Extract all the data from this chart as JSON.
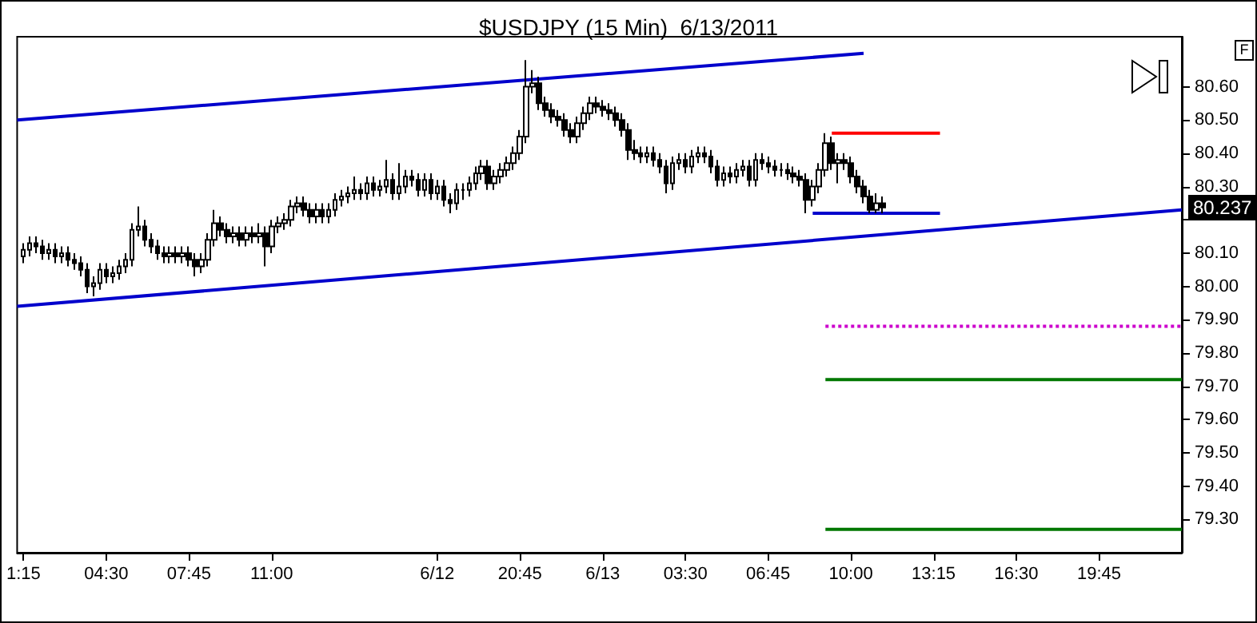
{
  "chart_data": {
    "type": "candlestick",
    "title": "$USDJPY (15 Min)  6/13/2011",
    "marker": "none",
    "categories": [
      null,
      "1:15",
      null,
      null,
      null,
      null,
      null,
      null,
      null,
      null,
      null,
      null,
      null,
      null,
      "04:30",
      null,
      null,
      null,
      null,
      null,
      null,
      null,
      null,
      null,
      null,
      null,
      null,
      "07:45",
      null,
      null,
      null,
      null,
      null,
      null,
      null,
      null,
      null,
      null,
      null,
      null,
      "11:00",
      null,
      null,
      null,
      null,
      null,
      null,
      null,
      null,
      null,
      null,
      null,
      null,
      null,
      null,
      null,
      null,
      null,
      null,
      null,
      null,
      null,
      null,
      null,
      null,
      null,
      "6/12",
      null,
      null,
      null,
      null,
      null,
      null,
      null,
      null,
      null,
      null,
      null,
      null,
      "20:45",
      null,
      null,
      null,
      null,
      null,
      null,
      null,
      null,
      null,
      null,
      null,
      null,
      "6/13",
      null,
      null,
      null,
      null,
      null,
      null,
      null,
      null,
      null,
      null,
      null,
      null,
      "03:30",
      null,
      null,
      null,
      null,
      null,
      null,
      null,
      null,
      null,
      null,
      null,
      null,
      "06:45",
      null,
      null,
      null,
      null,
      null,
      null,
      null,
      null,
      null,
      null,
      null,
      null,
      "10:00",
      null,
      null,
      null,
      null,
      null,
      null,
      null,
      null,
      null,
      null,
      null,
      null,
      "13:15",
      null,
      null,
      null,
      null,
      null,
      null,
      null,
      null,
      null,
      null,
      null,
      null,
      "16:30",
      null,
      null,
      null,
      null,
      null,
      null,
      null,
      null,
      null,
      null,
      null,
      null,
      "19:45",
      null,
      null,
      null,
      null,
      null,
      null,
      null,
      null,
      null,
      null,
      null,
      null,
      null
    ],
    "ylim": [
      79.2,
      80.75
    ],
    "yticks": [
      {
        "value": 79.3,
        "label": "79.30"
      },
      {
        "value": 79.4,
        "label": "79.40"
      },
      {
        "value": 79.5,
        "label": "79.50"
      },
      {
        "value": 79.6,
        "label": "79.60"
      },
      {
        "value": 79.7,
        "label": "79.70"
      },
      {
        "value": 79.8,
        "label": "79.80"
      },
      {
        "value": 79.9,
        "label": "79.90"
      },
      {
        "value": 80.0,
        "label": "80.00"
      },
      {
        "value": 80.1,
        "label": "80.10"
      },
      {
        "value": 80.2,
        "label": null
      },
      {
        "value": 80.3,
        "label": "80.30"
      },
      {
        "value": 80.4,
        "label": "80.40"
      },
      {
        "value": 80.5,
        "label": "80.50"
      },
      {
        "value": 80.6,
        "label": "80.60"
      }
    ],
    "annotations": [
      "80.237",
      "F"
    ],
    "series": [
      {
        "color": "#000000",
        "ohlc": [
          null,
          [
            80.09,
            80.13,
            80.07,
            80.11
          ],
          [
            80.11,
            80.15,
            80.09,
            80.13
          ],
          [
            80.13,
            80.15,
            80.1,
            80.12
          ],
          [
            80.12,
            80.14,
            80.08,
            80.1
          ],
          [
            80.1,
            80.13,
            80.08,
            80.11
          ],
          [
            80.11,
            80.13,
            80.07,
            80.09
          ],
          [
            80.09,
            80.12,
            80.07,
            80.1
          ],
          [
            80.1,
            80.12,
            80.06,
            80.08
          ],
          [
            80.08,
            80.1,
            80.05,
            80.07
          ],
          [
            80.07,
            80.09,
            80.03,
            80.05
          ],
          [
            80.05,
            80.07,
            79.98,
            80.0
          ],
          [
            80.0,
            80.03,
            79.97,
            80.01
          ],
          [
            80.01,
            80.07,
            79.99,
            80.05
          ],
          [
            80.05,
            80.07,
            80.01,
            80.03
          ],
          [
            80.03,
            80.06,
            80.01,
            80.04
          ],
          [
            80.04,
            80.08,
            80.02,
            80.06
          ],
          [
            80.06,
            80.1,
            80.04,
            80.08
          ],
          [
            80.08,
            80.19,
            80.06,
            80.17
          ],
          [
            80.17,
            80.24,
            80.15,
            80.18
          ],
          [
            80.18,
            80.2,
            80.12,
            80.14
          ],
          [
            80.14,
            80.16,
            80.1,
            80.12
          ],
          [
            80.12,
            80.14,
            80.08,
            80.1
          ],
          [
            80.1,
            80.12,
            80.07,
            80.09
          ],
          [
            80.09,
            80.12,
            80.07,
            80.1
          ],
          [
            80.1,
            80.12,
            80.07,
            80.09
          ],
          [
            80.09,
            80.12,
            80.07,
            80.1
          ],
          [
            80.1,
            80.12,
            80.06,
            80.08
          ],
          [
            80.08,
            80.1,
            80.03,
            80.06
          ],
          [
            80.06,
            80.1,
            80.04,
            80.08
          ],
          [
            80.08,
            80.16,
            80.06,
            80.14
          ],
          [
            80.14,
            80.23,
            80.12,
            80.19
          ],
          [
            80.19,
            80.21,
            80.15,
            80.17
          ],
          [
            80.17,
            80.19,
            80.13,
            80.15
          ],
          [
            80.15,
            80.18,
            80.13,
            80.16
          ],
          [
            80.16,
            80.18,
            80.12,
            80.14
          ],
          [
            80.14,
            80.18,
            80.12,
            80.16
          ],
          [
            80.16,
            80.18,
            80.13,
            80.15
          ],
          [
            80.15,
            80.19,
            80.13,
            80.16
          ],
          [
            80.16,
            80.18,
            80.06,
            80.12
          ],
          [
            80.12,
            80.2,
            80.1,
            80.18
          ],
          [
            80.18,
            80.21,
            80.16,
            80.19
          ],
          [
            80.19,
            80.22,
            80.17,
            80.2
          ],
          [
            80.2,
            80.26,
            80.18,
            80.24
          ],
          [
            80.24,
            80.27,
            80.22,
            80.25
          ],
          [
            80.25,
            80.27,
            80.21,
            80.23
          ],
          [
            80.23,
            80.25,
            80.19,
            80.21
          ],
          [
            80.21,
            80.25,
            80.19,
            80.23
          ],
          [
            80.23,
            80.25,
            80.19,
            80.21
          ],
          [
            80.21,
            80.25,
            80.19,
            80.23
          ],
          [
            80.23,
            80.28,
            80.21,
            80.26
          ],
          [
            80.26,
            80.29,
            80.24,
            80.27
          ],
          [
            80.27,
            80.3,
            80.25,
            80.28
          ],
          [
            80.28,
            80.33,
            80.26,
            80.29
          ],
          [
            80.29,
            80.31,
            80.26,
            80.28
          ],
          [
            80.28,
            80.33,
            80.26,
            80.31
          ],
          [
            80.31,
            80.33,
            80.27,
            80.29
          ],
          [
            80.29,
            80.32,
            80.27,
            80.3
          ],
          [
            80.3,
            80.38,
            80.28,
            80.32
          ],
          [
            80.32,
            80.34,
            80.26,
            80.28
          ],
          [
            80.28,
            80.37,
            80.26,
            80.3
          ],
          [
            80.3,
            80.35,
            80.28,
            80.33
          ],
          [
            80.33,
            80.35,
            80.3,
            80.32
          ],
          [
            80.32,
            80.34,
            80.27,
            80.29
          ],
          [
            80.29,
            80.34,
            80.27,
            80.32
          ],
          [
            80.32,
            80.34,
            80.26,
            80.28
          ],
          [
            80.28,
            80.32,
            80.26,
            80.3
          ],
          [
            80.3,
            80.32,
            80.24,
            80.26
          ],
          [
            80.26,
            80.28,
            80.22,
            80.25
          ],
          [
            80.25,
            80.31,
            80.23,
            80.29
          ],
          [
            80.29,
            80.31,
            80.26,
            80.29
          ],
          [
            80.29,
            80.33,
            80.27,
            80.31
          ],
          [
            80.31,
            80.36,
            80.29,
            80.34
          ],
          [
            80.34,
            80.38,
            80.32,
            80.36
          ],
          [
            80.36,
            80.38,
            80.29,
            80.31
          ],
          [
            80.31,
            80.35,
            80.29,
            80.33
          ],
          [
            80.33,
            80.37,
            80.31,
            80.35
          ],
          [
            80.35,
            80.39,
            80.33,
            80.37
          ],
          [
            80.37,
            80.42,
            80.35,
            80.4
          ],
          [
            80.4,
            80.47,
            80.38,
            80.45
          ],
          [
            80.45,
            80.68,
            80.43,
            80.6
          ],
          [
            80.6,
            80.65,
            80.58,
            80.61
          ],
          [
            80.61,
            80.63,
            80.53,
            80.55
          ],
          [
            80.55,
            80.57,
            80.51,
            80.53
          ],
          [
            80.53,
            80.55,
            80.49,
            80.51
          ],
          [
            80.51,
            80.53,
            80.48,
            80.5
          ],
          [
            80.5,
            80.52,
            80.45,
            80.47
          ],
          [
            80.47,
            80.49,
            80.43,
            80.45
          ],
          [
            80.45,
            80.51,
            80.43,
            80.49
          ],
          [
            80.49,
            80.54,
            80.47,
            80.52
          ],
          [
            80.52,
            80.57,
            80.5,
            80.55
          ],
          [
            80.55,
            80.57,
            80.52,
            80.54
          ],
          [
            80.54,
            80.56,
            80.51,
            80.53
          ],
          [
            80.53,
            80.55,
            80.5,
            80.52
          ],
          [
            80.52,
            80.54,
            80.48,
            80.5
          ],
          [
            80.5,
            80.52,
            80.45,
            80.47
          ],
          [
            80.47,
            80.49,
            80.38,
            80.41
          ],
          [
            80.41,
            80.44,
            80.38,
            80.4
          ],
          [
            80.4,
            80.42,
            80.37,
            80.39
          ],
          [
            80.39,
            80.42,
            80.37,
            80.4
          ],
          [
            80.4,
            80.42,
            80.36,
            80.38
          ],
          [
            80.38,
            80.4,
            80.34,
            80.36
          ],
          [
            80.36,
            80.38,
            80.28,
            80.31
          ],
          [
            80.31,
            80.39,
            80.29,
            80.37
          ],
          [
            80.37,
            80.4,
            80.35,
            80.38
          ],
          [
            80.38,
            80.4,
            80.34,
            80.36
          ],
          [
            80.36,
            80.41,
            80.34,
            80.39
          ],
          [
            80.39,
            80.42,
            80.37,
            80.4
          ],
          [
            80.4,
            80.42,
            80.37,
            80.39
          ],
          [
            80.39,
            80.41,
            80.34,
            80.36
          ],
          [
            80.36,
            80.38,
            80.3,
            80.32
          ],
          [
            80.32,
            80.36,
            80.3,
            80.34
          ],
          [
            80.34,
            80.36,
            80.31,
            80.33
          ],
          [
            80.33,
            80.37,
            80.31,
            80.35
          ],
          [
            80.35,
            80.38,
            80.33,
            80.36
          ],
          [
            80.36,
            80.38,
            80.3,
            80.32
          ],
          [
            80.32,
            80.4,
            80.3,
            80.38
          ],
          [
            80.38,
            80.4,
            80.35,
            80.37
          ],
          [
            80.37,
            80.39,
            80.34,
            80.36
          ],
          [
            80.36,
            80.38,
            80.33,
            80.35
          ],
          [
            80.35,
            80.37,
            80.33,
            80.35
          ],
          [
            80.35,
            80.37,
            80.32,
            80.34
          ],
          [
            80.34,
            80.36,
            80.31,
            80.33
          ],
          [
            80.33,
            80.35,
            80.3,
            80.32
          ],
          [
            80.32,
            80.34,
            80.22,
            80.26
          ],
          [
            80.26,
            80.32,
            80.24,
            80.3
          ],
          [
            80.3,
            80.37,
            80.28,
            80.35
          ],
          [
            80.35,
            80.46,
            80.33,
            80.43
          ],
          [
            80.43,
            80.45,
            80.35,
            80.37
          ],
          [
            80.37,
            80.4,
            80.31,
            80.38
          ],
          [
            80.38,
            80.4,
            80.35,
            80.37
          ],
          [
            80.37,
            80.39,
            80.31,
            80.33
          ],
          [
            80.33,
            80.35,
            80.28,
            80.3
          ],
          [
            80.3,
            80.32,
            80.25,
            80.27
          ],
          [
            80.27,
            80.29,
            80.22,
            80.23
          ],
          [
            80.23,
            80.28,
            80.22,
            80.25
          ],
          [
            80.25,
            80.27,
            80.22,
            80.237
          ],
          null,
          null,
          null,
          null,
          null,
          null,
          null,
          null,
          null,
          null,
          null,
          null,
          null,
          null,
          null,
          null,
          null,
          null,
          null,
          null,
          null,
          null,
          null,
          null,
          null,
          null,
          null,
          null,
          null,
          null,
          null,
          null,
          null,
          null,
          null,
          null,
          null,
          null,
          null,
          null,
          null,
          null,
          null,
          null,
          null,
          null,
          null
        ]
      },
      {
        "type": "line",
        "color": "#0000cc",
        "values": [
          80.5,
          null,
          null,
          null,
          null,
          null,
          null,
          null,
          null,
          null,
          null,
          null,
          null,
          null,
          null,
          null,
          null,
          null,
          null,
          null,
          null,
          null,
          null,
          null,
          null,
          null,
          null,
          null,
          null,
          null,
          null,
          null,
          null,
          null,
          null,
          null,
          null,
          null,
          null,
          null,
          null,
          null,
          null,
          null,
          null,
          null,
          null,
          null,
          null,
          null,
          null,
          null,
          null,
          null,
          null,
          null,
          null,
          null,
          null,
          null,
          null,
          null,
          null,
          null,
          null,
          null,
          null,
          null,
          null,
          null,
          null,
          null,
          null,
          null,
          null,
          null,
          null,
          null,
          null,
          null,
          null,
          null,
          null,
          null,
          null,
          null,
          null,
          null,
          null,
          null,
          null,
          null,
          null,
          null,
          null,
          null,
          null,
          null,
          null,
          null,
          null,
          null,
          null,
          null,
          null,
          null,
          null,
          null,
          null,
          null,
          null,
          null,
          null,
          null,
          null,
          null,
          null,
          null,
          null,
          null,
          null,
          null,
          null,
          null,
          null,
          null,
          null,
          null,
          null,
          null,
          null,
          null,
          null,
          80.7,
          null,
          null,
          null,
          null,
          null,
          null,
          null,
          null,
          null,
          null,
          null,
          null,
          null,
          null,
          null,
          null,
          null,
          null,
          null,
          null,
          null,
          null,
          null,
          null,
          null,
          null,
          null,
          null,
          null,
          null,
          null,
          null,
          null,
          null,
          null,
          null,
          null,
          null,
          null,
          null,
          null,
          null,
          null,
          null,
          null,
          null,
          null,
          null,
          null,
          null
        ]
      },
      {
        "type": "line",
        "color": "#0000cc",
        "values": [
          79.94,
          null,
          null,
          null,
          null,
          null,
          null,
          null,
          null,
          null,
          null,
          null,
          null,
          null,
          null,
          null,
          null,
          null,
          null,
          null,
          null,
          null,
          null,
          null,
          null,
          null,
          null,
          null,
          null,
          null,
          null,
          null,
          null,
          null,
          null,
          null,
          null,
          null,
          null,
          null,
          null,
          null,
          null,
          null,
          null,
          null,
          null,
          null,
          null,
          null,
          null,
          null,
          null,
          null,
          null,
          null,
          null,
          null,
          null,
          null,
          null,
          null,
          null,
          null,
          null,
          null,
          null,
          null,
          null,
          null,
          null,
          null,
          null,
          null,
          null,
          null,
          null,
          null,
          null,
          null,
          null,
          null,
          null,
          null,
          null,
          null,
          null,
          null,
          null,
          null,
          null,
          null,
          null,
          null,
          null,
          null,
          null,
          null,
          null,
          null,
          null,
          null,
          null,
          null,
          null,
          null,
          null,
          null,
          null,
          null,
          null,
          null,
          null,
          null,
          null,
          null,
          null,
          null,
          null,
          null,
          null,
          null,
          null,
          null,
          null,
          null,
          null,
          null,
          null,
          null,
          null,
          null,
          null,
          null,
          null,
          null,
          null,
          null,
          null,
          null,
          null,
          null,
          null,
          null,
          null,
          null,
          null,
          null,
          null,
          null,
          null,
          null,
          null,
          null,
          null,
          null,
          null,
          null,
          null,
          null,
          null,
          null,
          null,
          null,
          null,
          null,
          null,
          null,
          null,
          null,
          null,
          null,
          null,
          null,
          null,
          null,
          null,
          null,
          null,
          null,
          null,
          null,
          null,
          80.23
        ]
      },
      {
        "type": "line",
        "color": "#ff0000",
        "values": [
          null,
          null,
          null,
          null,
          null,
          null,
          null,
          null,
          null,
          null,
          null,
          null,
          null,
          null,
          null,
          null,
          null,
          null,
          null,
          null,
          null,
          null,
          null,
          null,
          null,
          null,
          null,
          null,
          null,
          null,
          null,
          null,
          null,
          null,
          null,
          null,
          null,
          null,
          null,
          null,
          null,
          null,
          null,
          null,
          null,
          null,
          null,
          null,
          null,
          null,
          null,
          null,
          null,
          null,
          null,
          null,
          null,
          null,
          null,
          null,
          null,
          null,
          null,
          null,
          null,
          null,
          null,
          null,
          null,
          null,
          null,
          null,
          null,
          null,
          null,
          null,
          null,
          null,
          null,
          null,
          null,
          null,
          null,
          null,
          null,
          null,
          null,
          null,
          null,
          null,
          null,
          null,
          null,
          null,
          null,
          null,
          null,
          null,
          null,
          null,
          null,
          null,
          null,
          null,
          null,
          null,
          null,
          null,
          null,
          null,
          null,
          null,
          null,
          null,
          null,
          null,
          null,
          null,
          null,
          null,
          null,
          null,
          null,
          null,
          null,
          null,
          null,
          null,
          80.46,
          null,
          null,
          null,
          null,
          null,
          null,
          null,
          null,
          null,
          null,
          null,
          null,
          null,
          null,
          null,
          null,
          80.46,
          null,
          null,
          null,
          null,
          null,
          null,
          null,
          null,
          null,
          null,
          null,
          null,
          null,
          null,
          null,
          null,
          null,
          null,
          null,
          null,
          null,
          null,
          null,
          null,
          null,
          null,
          null,
          null,
          null,
          null,
          null,
          null,
          null,
          null,
          null,
          null,
          null,
          null
        ]
      },
      {
        "type": "line",
        "color": "#0000cc",
        "values": [
          null,
          null,
          null,
          null,
          null,
          null,
          null,
          null,
          null,
          null,
          null,
          null,
          null,
          null,
          null,
          null,
          null,
          null,
          null,
          null,
          null,
          null,
          null,
          null,
          null,
          null,
          null,
          null,
          null,
          null,
          null,
          null,
          null,
          null,
          null,
          null,
          null,
          null,
          null,
          null,
          null,
          null,
          null,
          null,
          null,
          null,
          null,
          null,
          null,
          null,
          null,
          null,
          null,
          null,
          null,
          null,
          null,
          null,
          null,
          null,
          null,
          null,
          null,
          null,
          null,
          null,
          null,
          null,
          null,
          null,
          null,
          null,
          null,
          null,
          null,
          null,
          null,
          null,
          null,
          null,
          null,
          null,
          null,
          null,
          null,
          null,
          null,
          null,
          null,
          null,
          null,
          null,
          null,
          null,
          null,
          null,
          null,
          null,
          null,
          null,
          null,
          null,
          null,
          null,
          null,
          null,
          null,
          null,
          null,
          null,
          null,
          null,
          null,
          null,
          null,
          null,
          null,
          null,
          null,
          null,
          null,
          null,
          null,
          null,
          null,
          80.22,
          null,
          null,
          null,
          null,
          null,
          null,
          null,
          null,
          null,
          null,
          null,
          null,
          null,
          null,
          null,
          null,
          null,
          null,
          null,
          80.22,
          null,
          null,
          null,
          null,
          null,
          null,
          null,
          null,
          null,
          null,
          null,
          null,
          null,
          null,
          null,
          null,
          null,
          null,
          null,
          null,
          null,
          null,
          null,
          null,
          null,
          null,
          null,
          null,
          null,
          null,
          null,
          null,
          null,
          null,
          null,
          null,
          null,
          null
        ]
      },
      {
        "type": "line",
        "color": "#cc00cc",
        "line_style": "dotted",
        "values": [
          null,
          null,
          null,
          null,
          null,
          null,
          null,
          null,
          null,
          null,
          null,
          null,
          null,
          null,
          null,
          null,
          null,
          null,
          null,
          null,
          null,
          null,
          null,
          null,
          null,
          null,
          null,
          null,
          null,
          null,
          null,
          null,
          null,
          null,
          null,
          null,
          null,
          null,
          null,
          null,
          null,
          null,
          null,
          null,
          null,
          null,
          null,
          null,
          null,
          null,
          null,
          null,
          null,
          null,
          null,
          null,
          null,
          null,
          null,
          null,
          null,
          null,
          null,
          null,
          null,
          null,
          null,
          null,
          null,
          null,
          null,
          null,
          null,
          null,
          null,
          null,
          null,
          null,
          null,
          null,
          null,
          null,
          null,
          null,
          null,
          null,
          null,
          null,
          null,
          null,
          null,
          null,
          null,
          null,
          null,
          null,
          null,
          null,
          null,
          null,
          null,
          null,
          null,
          null,
          null,
          null,
          null,
          null,
          null,
          null,
          null,
          null,
          null,
          null,
          null,
          null,
          null,
          null,
          null,
          null,
          null,
          null,
          null,
          null,
          null,
          null,
          null,
          79.88,
          null,
          null,
          null,
          null,
          null,
          null,
          null,
          null,
          null,
          null,
          null,
          null,
          null,
          null,
          null,
          null,
          null,
          null,
          null,
          null,
          null,
          null,
          null,
          null,
          null,
          null,
          null,
          null,
          null,
          null,
          null,
          null,
          null,
          null,
          null,
          null,
          null,
          null,
          null,
          null,
          null,
          null,
          null,
          null,
          null,
          null,
          null,
          null,
          null,
          null,
          null,
          null,
          null,
          null,
          null,
          79.88
        ]
      },
      {
        "type": "line",
        "color": "#007700",
        "values": [
          null,
          null,
          null,
          null,
          null,
          null,
          null,
          null,
          null,
          null,
          null,
          null,
          null,
          null,
          null,
          null,
          null,
          null,
          null,
          null,
          null,
          null,
          null,
          null,
          null,
          null,
          null,
          null,
          null,
          null,
          null,
          null,
          null,
          null,
          null,
          null,
          null,
          null,
          null,
          null,
          null,
          null,
          null,
          null,
          null,
          null,
          null,
          null,
          null,
          null,
          null,
          null,
          null,
          null,
          null,
          null,
          null,
          null,
          null,
          null,
          null,
          null,
          null,
          null,
          null,
          null,
          null,
          null,
          null,
          null,
          null,
          null,
          null,
          null,
          null,
          null,
          null,
          null,
          null,
          null,
          null,
          null,
          null,
          null,
          null,
          null,
          null,
          null,
          null,
          null,
          null,
          null,
          null,
          null,
          null,
          null,
          null,
          null,
          null,
          null,
          null,
          null,
          null,
          null,
          null,
          null,
          null,
          null,
          null,
          null,
          null,
          null,
          null,
          null,
          null,
          null,
          null,
          null,
          null,
          null,
          null,
          null,
          null,
          null,
          null,
          null,
          null,
          79.72,
          null,
          null,
          null,
          null,
          null,
          null,
          null,
          null,
          null,
          null,
          null,
          null,
          null,
          null,
          null,
          null,
          null,
          null,
          null,
          null,
          null,
          null,
          null,
          null,
          null,
          null,
          null,
          null,
          null,
          null,
          null,
          null,
          null,
          null,
          null,
          null,
          null,
          null,
          null,
          null,
          null,
          null,
          null,
          null,
          null,
          null,
          null,
          null,
          null,
          null,
          null,
          null,
          null,
          null,
          null,
          79.72
        ]
      },
      {
        "type": "line",
        "color": "#007700",
        "values": [
          null,
          null,
          null,
          null,
          null,
          null,
          null,
          null,
          null,
          null,
          null,
          null,
          null,
          null,
          null,
          null,
          null,
          null,
          null,
          null,
          null,
          null,
          null,
          null,
          null,
          null,
          null,
          null,
          null,
          null,
          null,
          null,
          null,
          null,
          null,
          null,
          null,
          null,
          null,
          null,
          null,
          null,
          null,
          null,
          null,
          null,
          null,
          null,
          null,
          null,
          null,
          null,
          null,
          null,
          null,
          null,
          null,
          null,
          null,
          null,
          null,
          null,
          null,
          null,
          null,
          null,
          null,
          null,
          null,
          null,
          null,
          null,
          null,
          null,
          null,
          null,
          null,
          null,
          null,
          null,
          null,
          null,
          null,
          null,
          null,
          null,
          null,
          null,
          null,
          null,
          null,
          null,
          null,
          null,
          null,
          null,
          null,
          null,
          null,
          null,
          null,
          null,
          null,
          null,
          null,
          null,
          null,
          null,
          null,
          null,
          null,
          null,
          null,
          null,
          null,
          null,
          null,
          null,
          null,
          null,
          null,
          null,
          null,
          null,
          null,
          null,
          null,
          79.27,
          null,
          null,
          null,
          null,
          null,
          null,
          null,
          null,
          null,
          null,
          null,
          null,
          null,
          null,
          null,
          null,
          null,
          null,
          null,
          null,
          null,
          null,
          null,
          null,
          null,
          null,
          null,
          null,
          null,
          null,
          null,
          null,
          null,
          null,
          null,
          null,
          null,
          null,
          null,
          null,
          null,
          null,
          null,
          null,
          null,
          null,
          null,
          null,
          null,
          null,
          null,
          null,
          null,
          null,
          null,
          79.27
        ]
      }
    ]
  }
}
